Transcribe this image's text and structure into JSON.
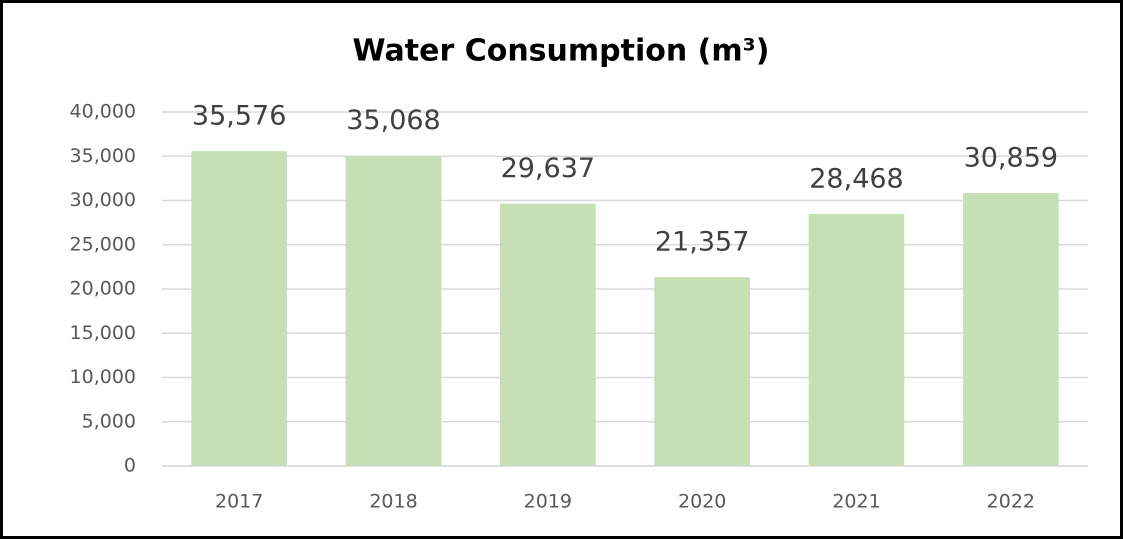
{
  "chart_data": {
    "type": "bar",
    "title": "Water Consumption (m³)",
    "categories": [
      "2017",
      "2018",
      "2019",
      "2020",
      "2021",
      "2022"
    ],
    "values": [
      35576,
      35068,
      29637,
      21357,
      28468,
      30859
    ],
    "value_labels": [
      "35,576",
      "35,068",
      "29,637",
      "21,357",
      "28,468",
      "30,859"
    ],
    "color": "#c5e0b4",
    "ylim": [
      0,
      40000
    ],
    "yticks": [
      0,
      {
        "value": 5000,
        "label": "5,000"
      },
      {
        "value": 10000,
        "label": "10,000"
      },
      {
        "value": 15000,
        "label": "15,000"
      },
      {
        "value": 20000,
        "label": "20,000"
      },
      {
        "value": 25000,
        "label": "25,000"
      },
      {
        "value": 30000,
        "label": "30,000"
      },
      {
        "value": 35000,
        "label": "35,000"
      },
      {
        "value": 40000,
        "label": "40,000"
      }
    ],
    "grid": true
  }
}
